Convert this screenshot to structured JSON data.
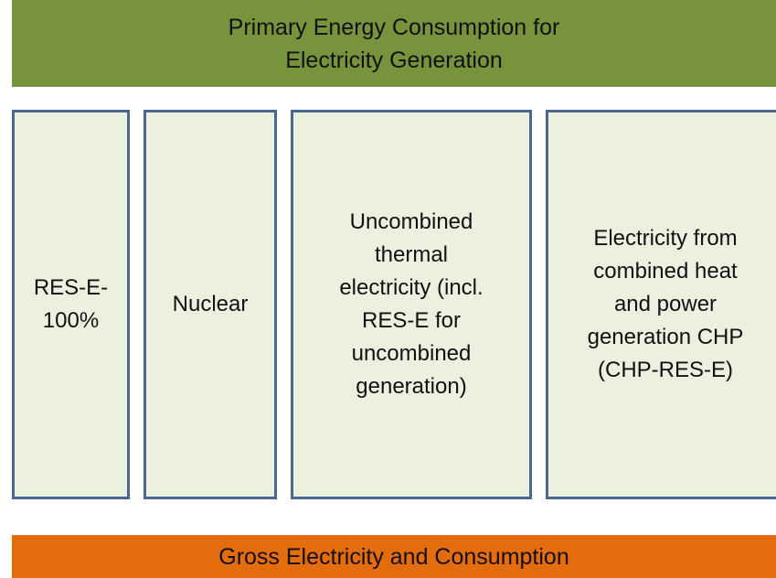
{
  "header": {
    "lines": [
      "Primary Energy Consumption for",
      "Electricity Generation"
    ]
  },
  "boxes": [
    {
      "lines": [
        "RES-E-",
        "100%"
      ]
    },
    {
      "lines": [
        "Nuclear"
      ]
    },
    {
      "lines": [
        "Uncombined",
        "thermal",
        "electricity (incl.",
        "RES-E for",
        "uncombined",
        "generation)"
      ]
    },
    {
      "lines": [
        "Electricity from",
        "combined heat",
        "and power",
        "generation CHP",
        "(CHP-RES-E)"
      ]
    }
  ],
  "footer": {
    "lines": [
      "Gross Electricity and Consumption"
    ]
  }
}
